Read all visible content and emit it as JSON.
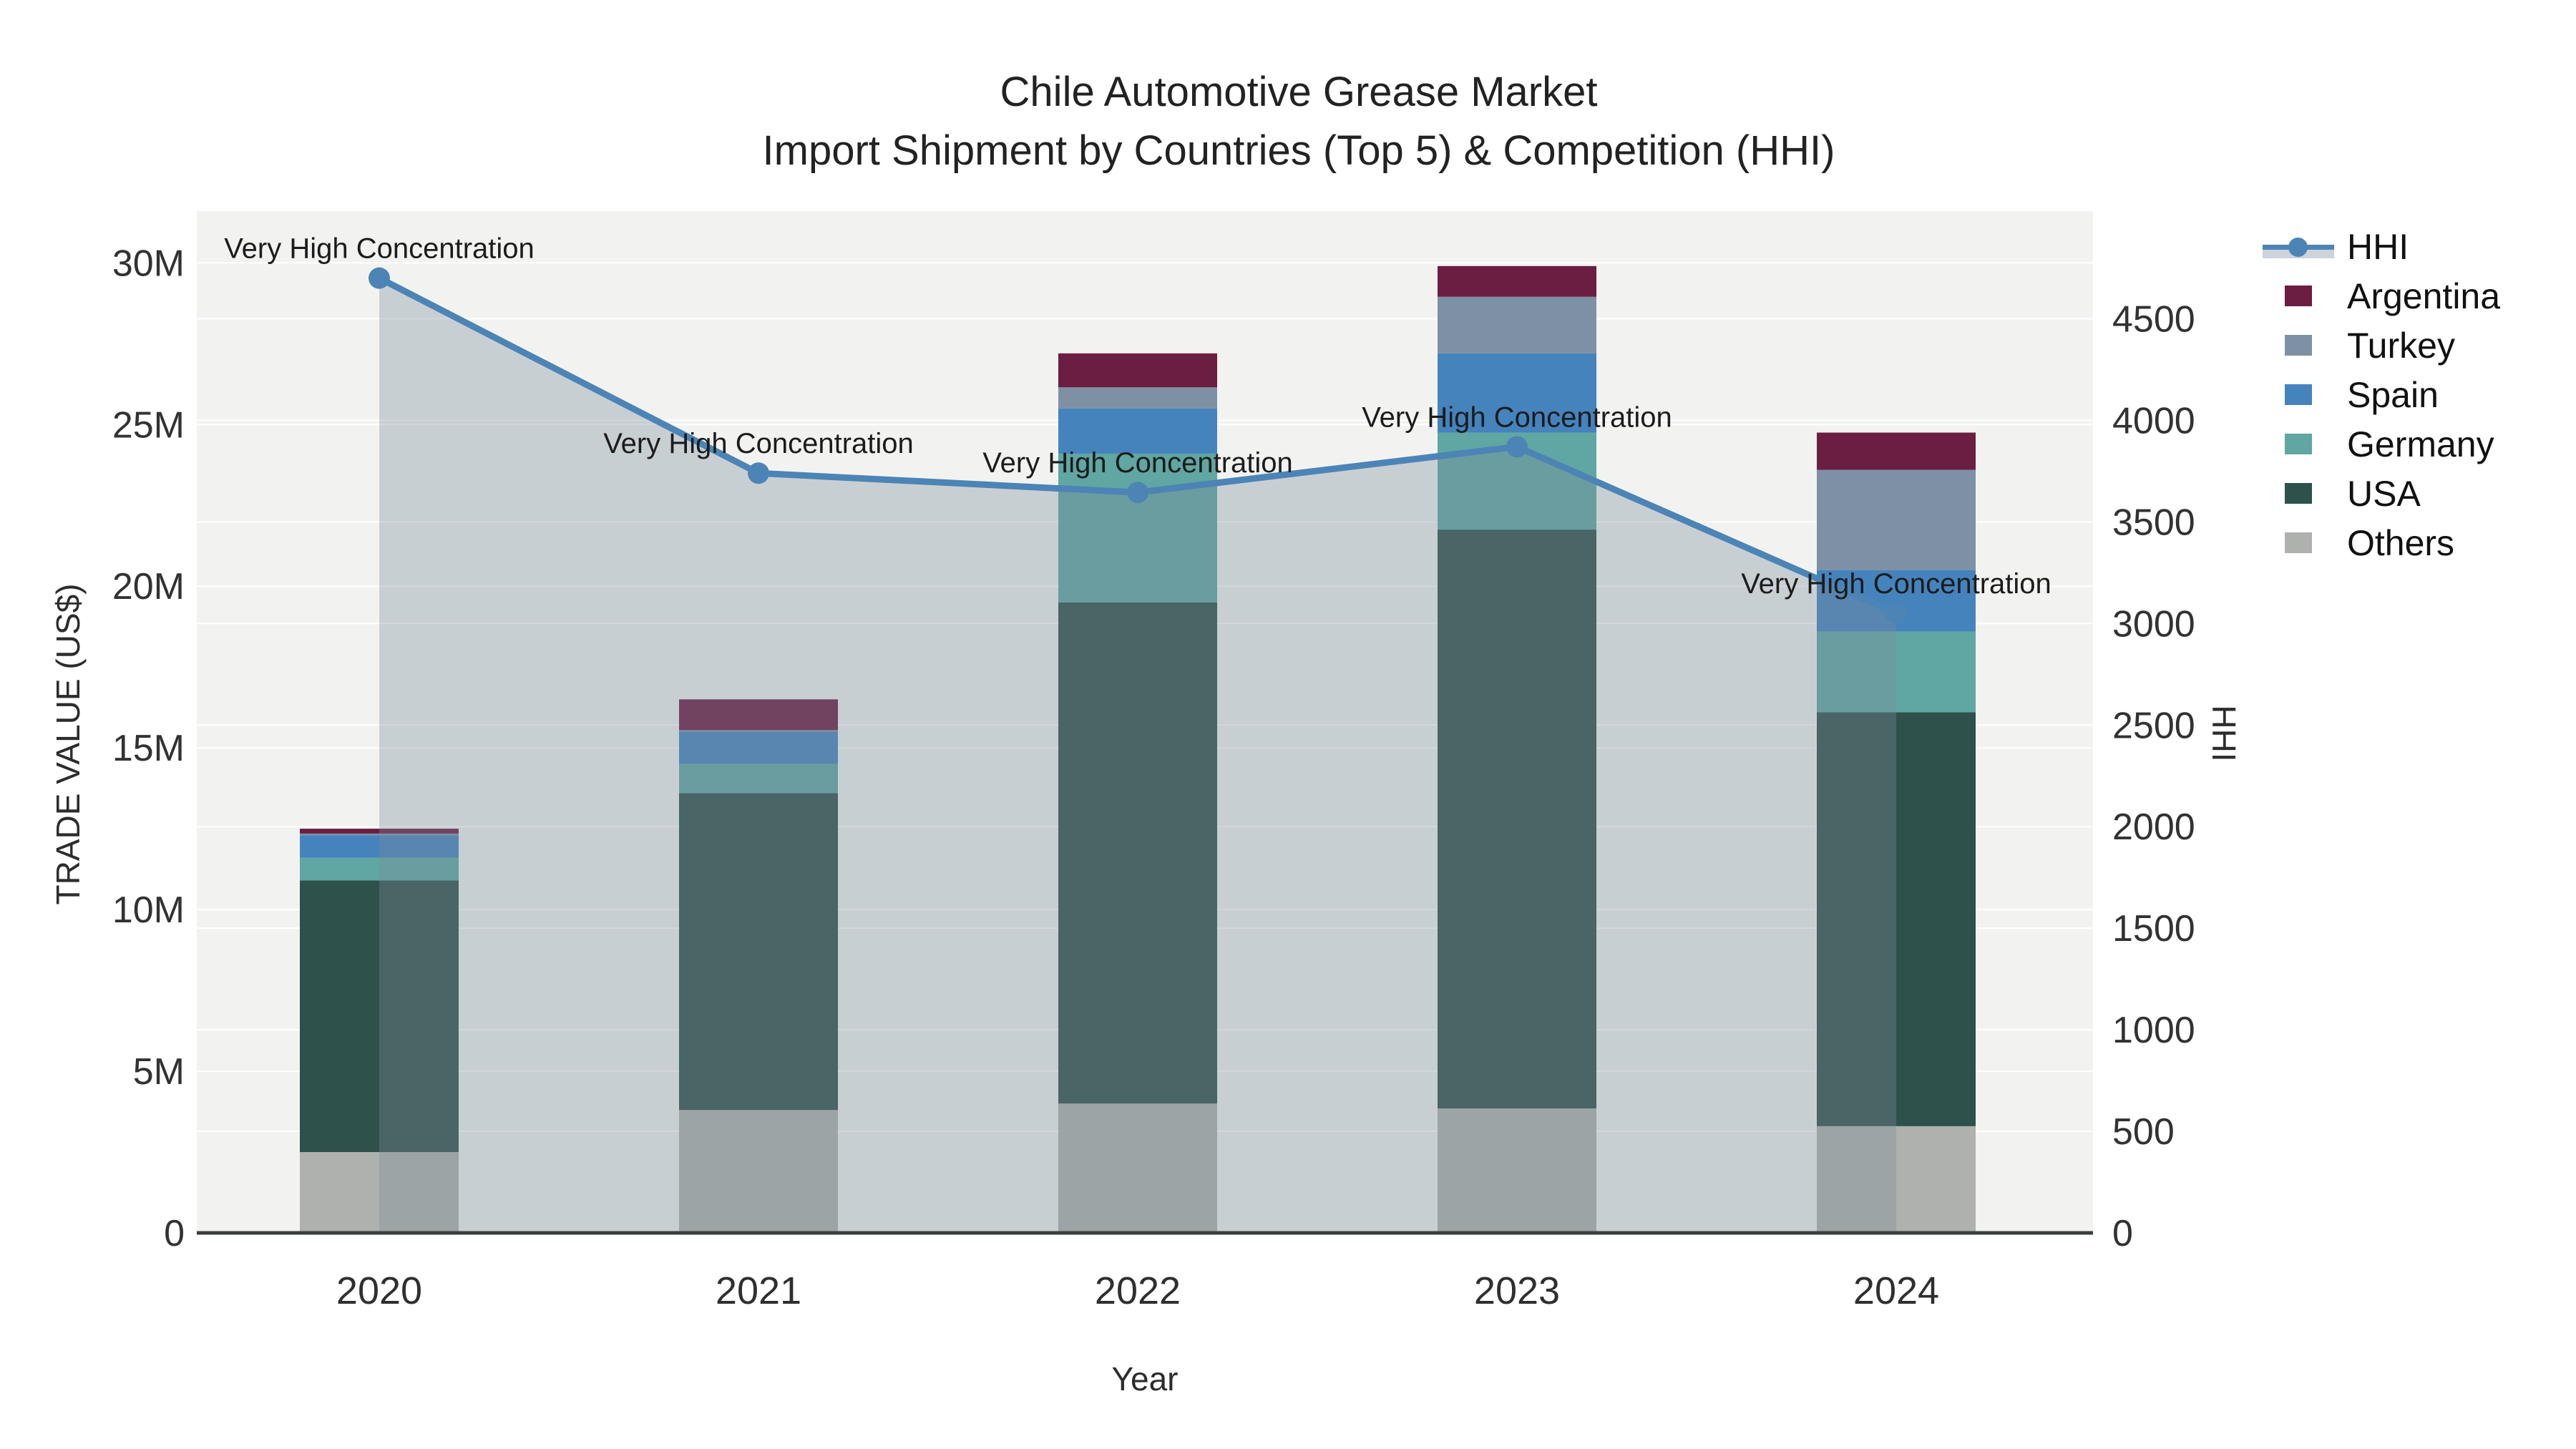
{
  "title": {
    "line1": "Chile Automotive Grease Market",
    "line2": "Import Shipment by Countries (Top 5) & Competition (HHI)"
  },
  "chart_data": {
    "type": "combo: stacked bar (left axis) + line with area fill (right axis)",
    "x": [
      "2020",
      "2021",
      "2022",
      "2023",
      "2024"
    ],
    "xlabel": "Year",
    "ylabel_left": "TRADE VALUE (US$)",
    "ylabel_right": "HHI",
    "bar_unit": "millions of US$",
    "bar_series_bottom_to_top": [
      {
        "name": "Others",
        "color": "#AEB1AD",
        "values": [
          2.5,
          3.8,
          4.0,
          3.85,
          3.3
        ]
      },
      {
        "name": "USA",
        "color": "#2E514B",
        "values": [
          8.4,
          9.8,
          15.5,
          17.9,
          12.8
        ]
      },
      {
        "name": "Germany",
        "color": "#60A6A2",
        "values": [
          0.7,
          0.9,
          4.6,
          3.0,
          2.5
        ]
      },
      {
        "name": "Spain",
        "color": "#4583BD",
        "values": [
          0.7,
          1.0,
          1.4,
          2.45,
          1.9
        ]
      },
      {
        "name": "Turkey",
        "color": "#7E91A4",
        "values": [
          0.05,
          0.05,
          0.65,
          1.75,
          3.1
        ]
      },
      {
        "name": "Argentina",
        "color": "#6C1D42",
        "values": [
          0.15,
          0.95,
          1.05,
          0.95,
          1.15
        ]
      }
    ],
    "bar_totals_M": [
      12.5,
      16.5,
      27.2,
      29.9,
      24.75
    ],
    "line_series": {
      "name": "HHI",
      "color": "#4C84B6",
      "fill_color": "rgba(124,139,155,0.35)",
      "values": [
        4700,
        3740,
        3645,
        3870,
        3050
      ]
    },
    "annotation_text": "Very High Concentration",
    "yticks_left": {
      "labels": [
        "0",
        "5M",
        "10M",
        "15M",
        "20M",
        "25M",
        "30M"
      ],
      "values_M": [
        0,
        5,
        10,
        15,
        20,
        25,
        30
      ]
    },
    "yticks_right": {
      "labels": [
        "0",
        "500",
        "1000",
        "1500",
        "2000",
        "2500",
        "3000",
        "3500",
        "4000",
        "4500"
      ],
      "values": [
        0,
        500,
        1000,
        1500,
        2000,
        2500,
        3000,
        3500,
        4000,
        4500
      ]
    },
    "ylim_left_M": [
      0,
      31.6
    ],
    "ylim_right": [
      0,
      5030
    ],
    "grid": true,
    "plot_background": "#F2F3F1",
    "gridline_color": "#FFFFFF",
    "axisline_color": "#3B3F3B",
    "legend_position": "right"
  },
  "legend": {
    "entries": [
      {
        "label": "HHI",
        "color": "#4C84B6",
        "type": "line"
      },
      {
        "label": "Argentina",
        "color": "#6C1D42",
        "type": "swatch"
      },
      {
        "label": "Turkey",
        "color": "#7E91A4",
        "type": "swatch"
      },
      {
        "label": "Spain",
        "color": "#4583BD",
        "type": "swatch"
      },
      {
        "label": "Germany",
        "color": "#60A6A2",
        "type": "swatch"
      },
      {
        "label": "USA",
        "color": "#2E514B",
        "type": "swatch"
      },
      {
        "label": "Others",
        "color": "#AEB1AD",
        "type": "swatch"
      }
    ]
  }
}
